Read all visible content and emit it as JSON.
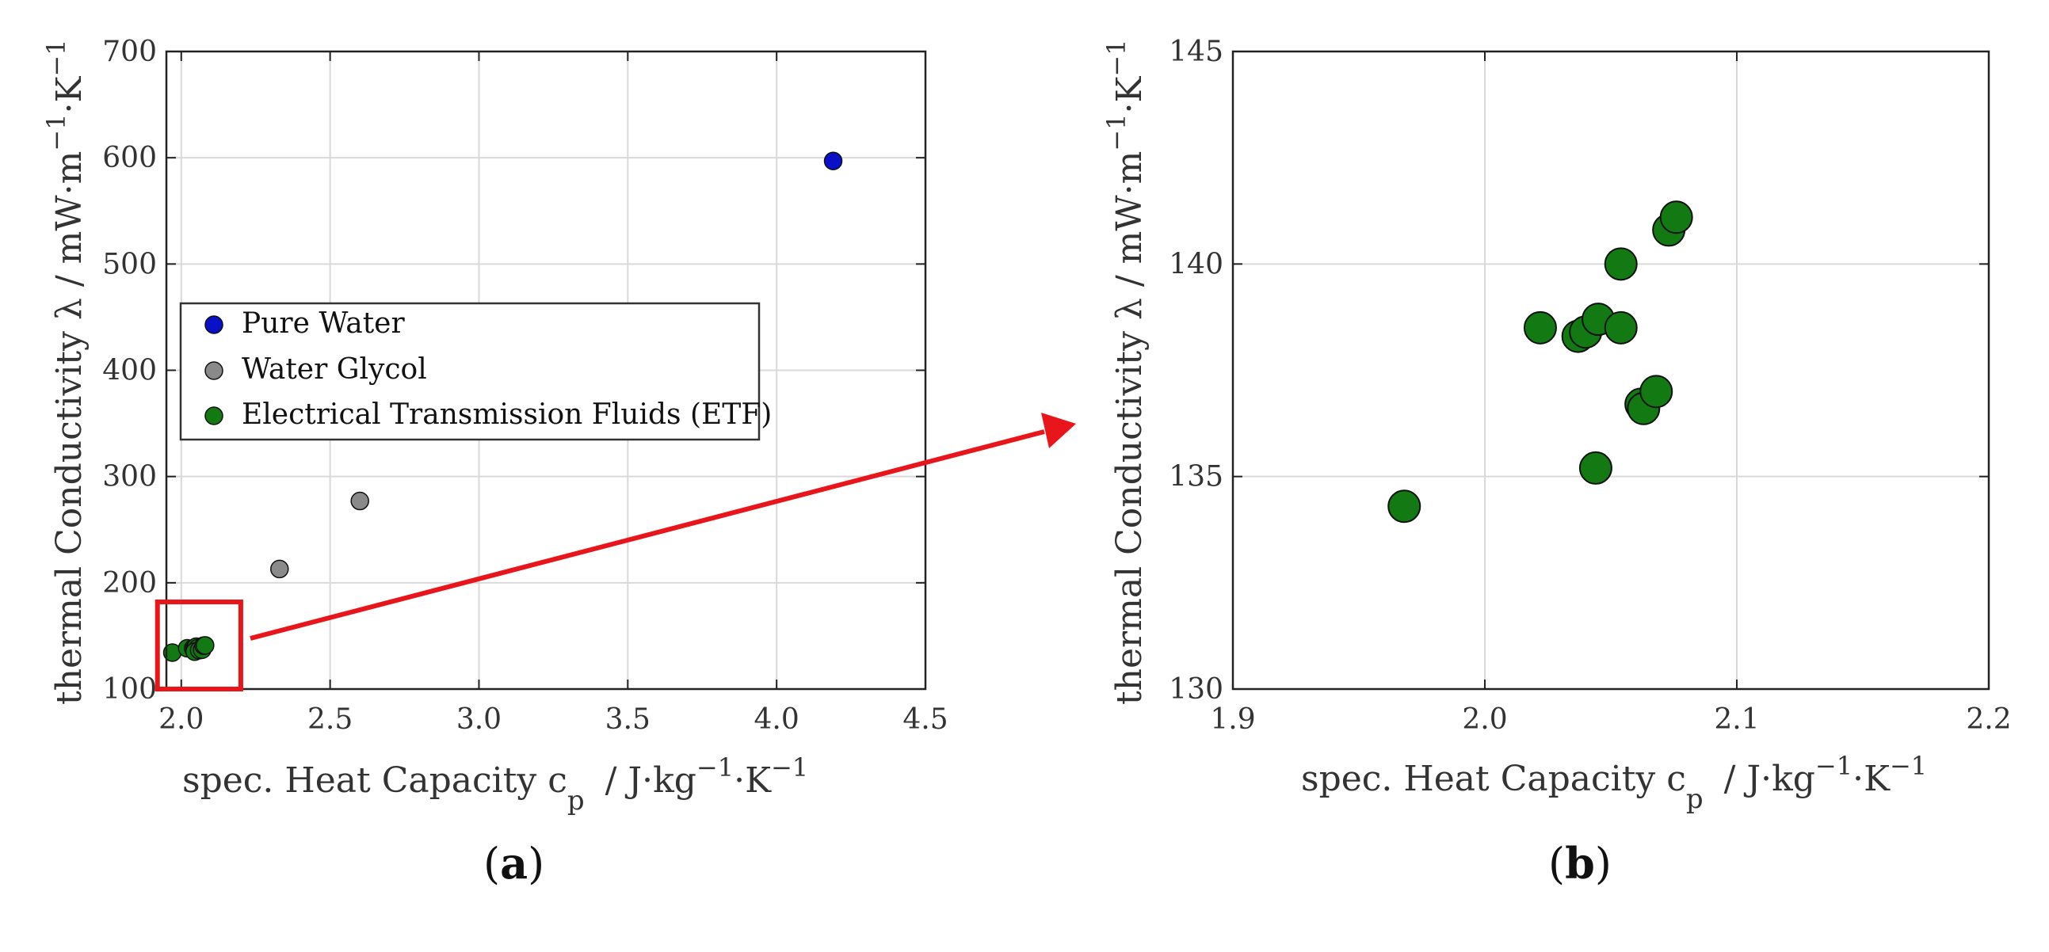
{
  "chart_data": [
    {
      "type": "scatter",
      "panel": "a",
      "xlabel": "spec. Heat Capacity c",
      "xlabel_sub": "p",
      "xlabel_unit": "/ J·kg",
      "xlabel_sup1": "−1",
      "xlabel_mid": "·K",
      "xlabel_sup2": "−1",
      "ylabel": "thermal Conductivity λ / mW·m",
      "ylabel_sup1": "−1",
      "ylabel_mid": "·K",
      "ylabel_sup2": "−1",
      "xlim": [
        1.95,
        4.5
      ],
      "ylim": [
        100,
        700
      ],
      "xticks": [
        "2.0",
        "2.5",
        "3.0",
        "3.5",
        "4.0",
        "4.5"
      ],
      "yticks": [
        "100",
        "200",
        "300",
        "400",
        "500",
        "600",
        "700"
      ],
      "grid": true,
      "legend_position": "center-left",
      "series": [
        {
          "name": "Pure Water",
          "color": "#0a10c8",
          "points": [
            [
              4.19,
              597
            ]
          ]
        },
        {
          "name": "Water Glycol",
          "color": "#8a8a8a",
          "points": [
            [
              2.33,
              213
            ],
            [
              2.6,
              277
            ]
          ]
        },
        {
          "name": "Electrical Transmission Fluids (ETF)",
          "color": "#137a13",
          "points": [
            [
              1.97,
              134.3
            ],
            [
              2.02,
              138.4
            ],
            [
              2.04,
              138.3
            ],
            [
              2.045,
              138.6
            ],
            [
              2.05,
              139.9
            ],
            [
              2.055,
              138.5
            ],
            [
              2.045,
              135.2
            ],
            [
              2.06,
              136.6
            ],
            [
              2.07,
              137.0
            ],
            [
              2.075,
              140.8
            ],
            [
              2.08,
              141.1
            ]
          ]
        }
      ],
      "zoom_box": {
        "xrange": [
          1.92,
          2.2
        ],
        "yrange": [
          100,
          182
        ],
        "color": "#e8161b"
      }
    },
    {
      "type": "scatter",
      "panel": "b",
      "xlabel": "spec. Heat Capacity c",
      "xlabel_sub": "p",
      "xlabel_unit": "/ J·kg",
      "xlabel_sup1": "−1",
      "xlabel_mid": "·K",
      "xlabel_sup2": "−1",
      "ylabel": "thermal Conductivity λ / mW·m",
      "ylabel_sup1": "−1",
      "ylabel_mid": "·K",
      "ylabel_sup2": "−1",
      "xlim": [
        1.9,
        2.2
      ],
      "ylim": [
        130,
        145
      ],
      "xticks": [
        "1.9",
        "2.0",
        "2.1",
        "2.2"
      ],
      "yticks": [
        "130",
        "135",
        "140",
        "145"
      ],
      "grid": true,
      "series": [
        {
          "color": "#137a13",
          "points": [
            [
              1.968,
              134.3
            ],
            [
              2.022,
              138.5
            ],
            [
              2.037,
              138.3
            ],
            [
              2.04,
              138.4
            ],
            [
              2.045,
              138.7
            ],
            [
              2.054,
              140.0
            ],
            [
              2.054,
              138.5
            ],
            [
              2.044,
              135.2
            ],
            [
              2.062,
              136.7
            ],
            [
              2.063,
              136.6
            ],
            [
              2.068,
              137.0
            ],
            [
              2.073,
              140.8
            ],
            [
              2.076,
              141.1
            ]
          ]
        }
      ]
    }
  ],
  "labels": {
    "a": "a",
    "b": "b"
  },
  "arrow_color": "#e8161b"
}
